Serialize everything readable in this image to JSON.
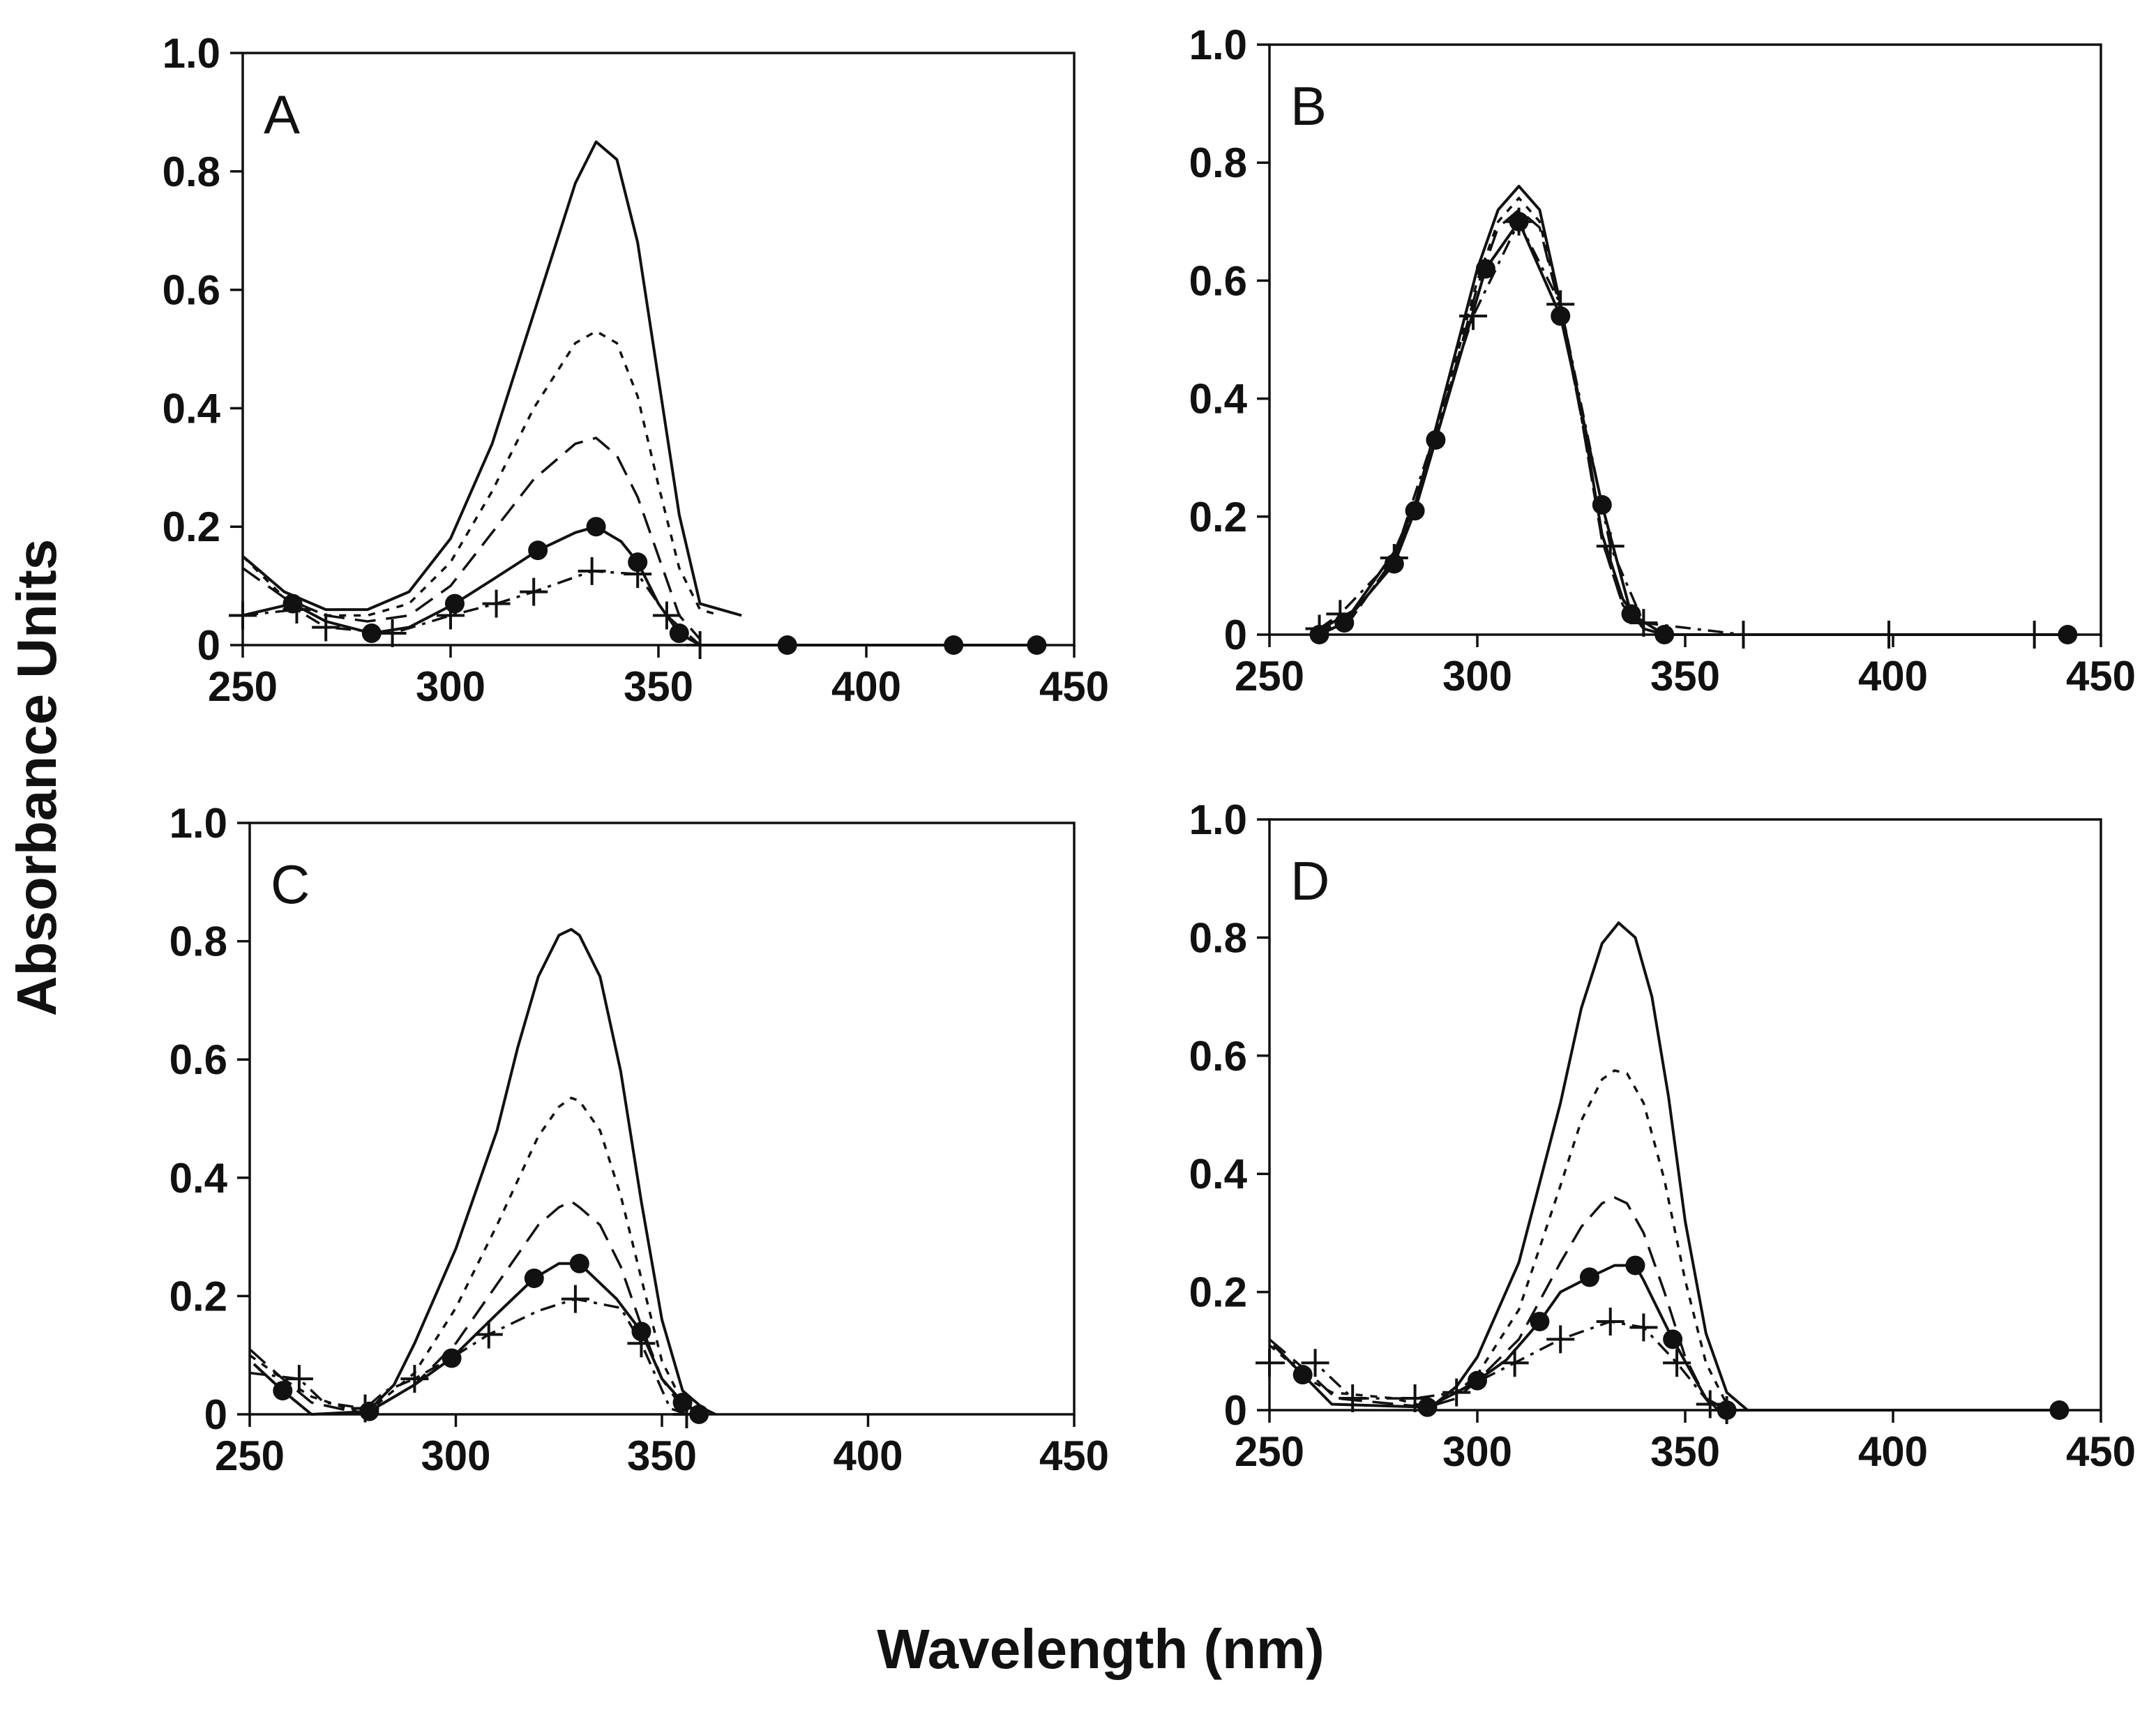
{
  "figure": {
    "ylabel": "Absorbance Units",
    "xlabel": "Wavelength (nm)"
  },
  "chart_data": [
    {
      "type": "line",
      "panel": "A",
      "xlim": [
        250,
        450
      ],
      "ylim": [
        0,
        1.0
      ],
      "xticks": [
        "250",
        "300",
        "350",
        "400",
        "450"
      ],
      "yticks": [
        "0",
        "0.2",
        "0.4",
        "0.6",
        "0.8",
        "1.0"
      ],
      "series": [
        {
          "name": "solid-dotted",
          "style": "solid",
          "x": [
            250,
            260,
            270,
            280,
            290,
            300,
            310,
            320,
            330,
            335,
            340,
            345,
            350,
            355,
            360,
            370
          ],
          "y": [
            0.15,
            0.09,
            0.06,
            0.06,
            0.09,
            0.18,
            0.34,
            0.56,
            0.78,
            0.85,
            0.82,
            0.68,
            0.45,
            0.22,
            0.07,
            0.05
          ]
        },
        {
          "name": "short-dash",
          "style": "dash",
          "x": [
            250,
            260,
            270,
            280,
            290,
            300,
            310,
            320,
            330,
            335,
            340,
            345,
            350,
            355,
            360,
            365
          ],
          "y": [
            0.15,
            0.08,
            0.05,
            0.05,
            0.07,
            0.14,
            0.26,
            0.4,
            0.51,
            0.53,
            0.51,
            0.42,
            0.27,
            0.13,
            0.06,
            0.05
          ]
        },
        {
          "name": "long-dash",
          "style": "longdash",
          "x": [
            250,
            260,
            270,
            280,
            290,
            300,
            310,
            320,
            330,
            335,
            340,
            345,
            350,
            355,
            360
          ],
          "y": [
            0.13,
            0.08,
            0.05,
            0.04,
            0.05,
            0.1,
            0.19,
            0.28,
            0.34,
            0.35,
            0.32,
            0.25,
            0.15,
            0.05,
            0.01
          ]
        },
        {
          "name": "filled-circle",
          "style": "solid",
          "marker": "circle",
          "x": [
            250,
            262,
            270,
            281,
            290,
            301,
            310,
            321,
            330,
            335,
            341,
            345,
            350,
            355,
            360,
            381,
            401,
            421,
            441
          ],
          "y": [
            0.05,
            0.07,
            0.04,
            0.02,
            0.03,
            0.07,
            0.11,
            0.16,
            0.19,
            0.2,
            0.175,
            0.14,
            0.07,
            0.02,
            0.0,
            0.0,
            0.0,
            0.0,
            0.0
          ]
        },
        {
          "name": "plus",
          "style": "dashdot",
          "marker": "plus",
          "x": [
            250,
            263,
            270,
            286,
            300,
            311,
            320,
            334,
            345,
            352,
            360
          ],
          "y": [
            0.05,
            0.06,
            0.03,
            0.02,
            0.05,
            0.07,
            0.09,
            0.125,
            0.12,
            0.05,
            0.0
          ]
        }
      ]
    },
    {
      "type": "line",
      "panel": "B",
      "xlim": [
        250,
        450
      ],
      "ylim": [
        0,
        1.0
      ],
      "xticks": [
        "250",
        "300",
        "350",
        "400",
        "450"
      ],
      "yticks": [
        "0",
        "0.2",
        "0.4",
        "0.6",
        "0.8",
        "1.0"
      ],
      "series": [
        {
          "name": "solid-dotted",
          "style": "solid",
          "x": [
            260,
            270,
            280,
            285,
            290,
            300,
            305,
            310,
            315,
            320,
            325,
            330,
            335,
            340,
            345,
            350
          ],
          "y": [
            0.0,
            0.04,
            0.14,
            0.22,
            0.35,
            0.62,
            0.72,
            0.76,
            0.72,
            0.56,
            0.38,
            0.17,
            0.06,
            0.01,
            0.0,
            0.0
          ]
        },
        {
          "name": "short-dash",
          "style": "dash",
          "x": [
            260,
            270,
            280,
            285,
            290,
            300,
            305,
            310,
            315,
            320,
            325,
            330,
            335,
            340,
            345,
            350
          ],
          "y": [
            0.0,
            0.03,
            0.13,
            0.21,
            0.34,
            0.6,
            0.7,
            0.74,
            0.7,
            0.55,
            0.37,
            0.16,
            0.05,
            0.01,
            0.0,
            0.0
          ]
        },
        {
          "name": "long-dash",
          "style": "longdash",
          "x": [
            260,
            270,
            280,
            285,
            290,
            300,
            305,
            310,
            315,
            320,
            325,
            330,
            335,
            340,
            345,
            350
          ],
          "y": [
            0.0,
            0.03,
            0.13,
            0.21,
            0.33,
            0.59,
            0.69,
            0.72,
            0.69,
            0.55,
            0.37,
            0.16,
            0.05,
            0.01,
            0.0,
            0.0
          ]
        },
        {
          "name": "filled-circle",
          "style": "solid",
          "marker": "circle",
          "x": [
            262,
            268,
            280,
            285,
            290,
            302,
            310,
            320,
            330,
            337,
            345,
            442
          ],
          "y": [
            0.0,
            0.02,
            0.12,
            0.21,
            0.33,
            0.62,
            0.7,
            0.54,
            0.22,
            0.035,
            0.0,
            0.0
          ]
        },
        {
          "name": "plus",
          "style": "dashdot",
          "marker": "plus",
          "x": [
            262,
            267,
            280,
            299,
            310,
            320,
            332,
            340,
            364,
            399,
            434
          ],
          "y": [
            0.01,
            0.035,
            0.13,
            0.54,
            0.7,
            0.56,
            0.15,
            0.02,
            0.0,
            0.0,
            0.0
          ]
        }
      ]
    },
    {
      "type": "line",
      "panel": "C",
      "xlim": [
        250,
        450
      ],
      "ylim": [
        0,
        1.0
      ],
      "xticks": [
        "250",
        "300",
        "350",
        "400",
        "450"
      ],
      "yticks": [
        "0",
        "0.2",
        "0.4",
        "0.6",
        "0.8",
        "1.0"
      ],
      "series": [
        {
          "name": "solid-dotted",
          "style": "solid",
          "x": [
            278,
            285,
            290,
            300,
            310,
            315,
            320,
            325,
            328,
            330,
            335,
            340,
            345,
            350,
            355,
            360,
            363
          ],
          "y": [
            0.0,
            0.05,
            0.12,
            0.28,
            0.48,
            0.62,
            0.74,
            0.81,
            0.82,
            0.81,
            0.74,
            0.58,
            0.36,
            0.16,
            0.04,
            0.01,
            0.0
          ]
        },
        {
          "name": "short-dash",
          "style": "dash",
          "x": [
            250,
            258,
            265,
            278,
            290,
            300,
            310,
            320,
            325,
            328,
            330,
            335,
            340,
            345,
            350,
            355,
            360
          ],
          "y": [
            0.1,
            0.06,
            0.03,
            0.0,
            0.07,
            0.18,
            0.32,
            0.47,
            0.52,
            0.535,
            0.53,
            0.48,
            0.37,
            0.23,
            0.09,
            0.02,
            0.0
          ]
        },
        {
          "name": "long-dash",
          "style": "longdash",
          "x": [
            250,
            258,
            265,
            278,
            290,
            300,
            310,
            320,
            325,
            328,
            330,
            335,
            340,
            345,
            350,
            355,
            360
          ],
          "y": [
            0.11,
            0.06,
            0.02,
            0.0,
            0.05,
            0.12,
            0.22,
            0.32,
            0.35,
            0.36,
            0.35,
            0.32,
            0.25,
            0.15,
            0.06,
            0.01,
            0.0
          ]
        },
        {
          "name": "filled-circle",
          "style": "solid",
          "marker": "circle",
          "x": [
            251,
            258,
            265,
            279,
            290,
            299,
            310,
            319,
            325,
            330,
            339,
            345,
            350,
            355,
            359
          ],
          "y": [
            0.085,
            0.04,
            0.0,
            0.005,
            0.05,
            0.095,
            0.17,
            0.23,
            0.255,
            0.255,
            0.195,
            0.14,
            0.06,
            0.02,
            0.0
          ]
        },
        {
          "name": "plus",
          "style": "dashdot",
          "marker": "plus",
          "x": [
            250,
            262,
            268,
            278,
            283,
            290,
            300,
            308,
            320,
            329,
            340,
            345,
            352,
            356
          ],
          "y": [
            0.07,
            0.06,
            0.02,
            0.01,
            0.04,
            0.06,
            0.1,
            0.135,
            0.175,
            0.195,
            0.18,
            0.12,
            0.01,
            0.0
          ]
        }
      ]
    },
    {
      "type": "line",
      "panel": "D",
      "xlim": [
        250,
        450
      ],
      "ylim": [
        0,
        1.0
      ],
      "xticks": [
        "250",
        "300",
        "350",
        "400",
        "450"
      ],
      "yticks": [
        "0",
        "0.2",
        "0.4",
        "0.6",
        "0.8",
        "1.0"
      ],
      "series": [
        {
          "name": "solid-dotted",
          "style": "solid",
          "x": [
            288,
            295,
            300,
            310,
            320,
            325,
            330,
            334,
            338,
            342,
            346,
            350,
            355,
            360,
            365
          ],
          "y": [
            0.0,
            0.04,
            0.09,
            0.25,
            0.52,
            0.68,
            0.79,
            0.825,
            0.8,
            0.7,
            0.53,
            0.32,
            0.13,
            0.03,
            0.0
          ]
        },
        {
          "name": "short-dash",
          "style": "dash",
          "x": [
            250,
            260,
            265,
            280,
            288,
            295,
            300,
            310,
            320,
            325,
            330,
            333,
            336,
            340,
            345,
            350,
            355,
            360,
            362
          ],
          "y": [
            0.11,
            0.05,
            0.03,
            0.02,
            0.005,
            0.03,
            0.06,
            0.17,
            0.38,
            0.49,
            0.56,
            0.575,
            0.57,
            0.52,
            0.39,
            0.22,
            0.08,
            0.01,
            0.0
          ]
        },
        {
          "name": "long-dash",
          "style": "longdash",
          "x": [
            250,
            260,
            266,
            288,
            295,
            300,
            310,
            320,
            325,
            330,
            333,
            336,
            340,
            345,
            350,
            355,
            358
          ],
          "y": [
            0.12,
            0.06,
            0.02,
            0.005,
            0.02,
            0.05,
            0.12,
            0.25,
            0.31,
            0.35,
            0.36,
            0.35,
            0.3,
            0.2,
            0.09,
            0.02,
            0.0
          ]
        },
        {
          "name": "filled-circle",
          "style": "solid",
          "marker": "circle",
          "x": [
            251,
            258,
            265,
            288,
            295,
            300,
            307,
            315,
            320,
            327,
            333,
            338,
            340,
            347,
            355,
            360,
            440
          ],
          "y": [
            0.11,
            0.06,
            0.01,
            0.005,
            0.03,
            0.05,
            0.085,
            0.15,
            0.2,
            0.225,
            0.245,
            0.245,
            0.22,
            0.12,
            0.02,
            0.0,
            0.0
          ]
        },
        {
          "name": "plus",
          "style": "dashdot",
          "marker": "plus",
          "x": [
            250,
            261,
            270,
            285,
            295,
            309,
            320,
            332,
            340,
            348,
            356,
            360
          ],
          "y": [
            0.08,
            0.08,
            0.02,
            0.02,
            0.03,
            0.08,
            0.12,
            0.15,
            0.14,
            0.08,
            0.01,
            0.0
          ]
        }
      ]
    }
  ]
}
